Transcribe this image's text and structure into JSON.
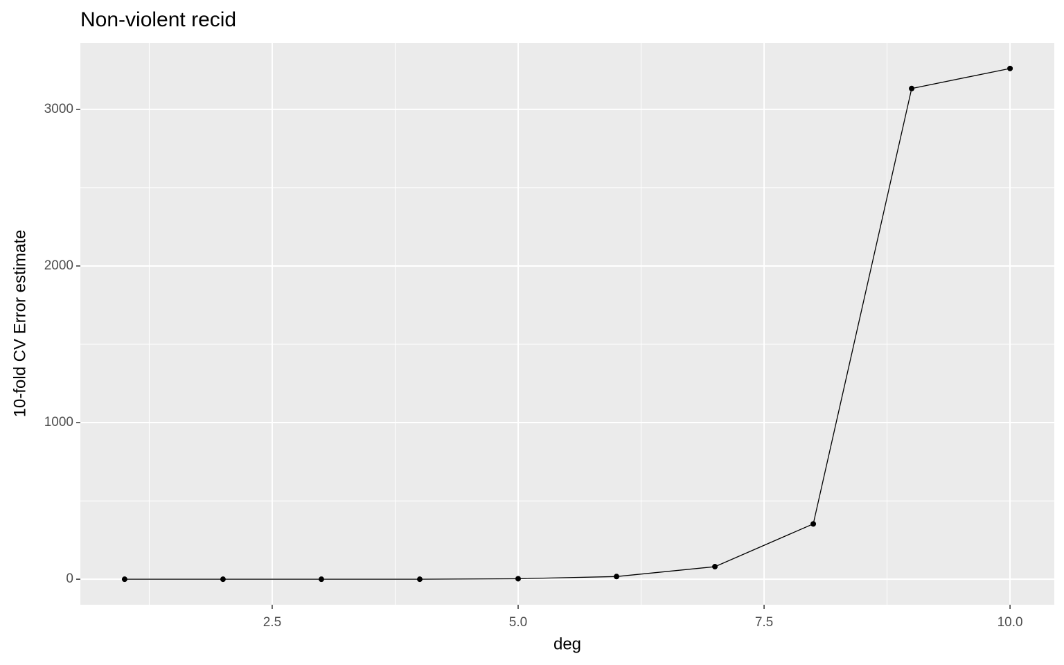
{
  "chart_data": {
    "type": "line",
    "title": "Non-violent recid",
    "x_label": "deg",
    "y_label": "10-fold CV Error estimate",
    "x": [
      1,
      2,
      3,
      4,
      5,
      6,
      7,
      8,
      9,
      10
    ],
    "series": [
      {
        "color": "#000000",
        "values": [
          0,
          0,
          0,
          0,
          3,
          17,
          80,
          353,
          3133,
          3261
        ]
      }
    ],
    "xlim": [
      0.55,
      10.45
    ],
    "ylim": [
      -163,
      3424
    ],
    "xticks": [
      {
        "value": 2.5,
        "label": "2.5"
      },
      {
        "value": 5,
        "label": "5.0"
      },
      {
        "value": 7.5,
        "label": "7.5"
      },
      {
        "value": 10,
        "label": "10.0"
      }
    ],
    "yticks": [
      0,
      1000,
      2000,
      3000
    ],
    "grid": true
  }
}
